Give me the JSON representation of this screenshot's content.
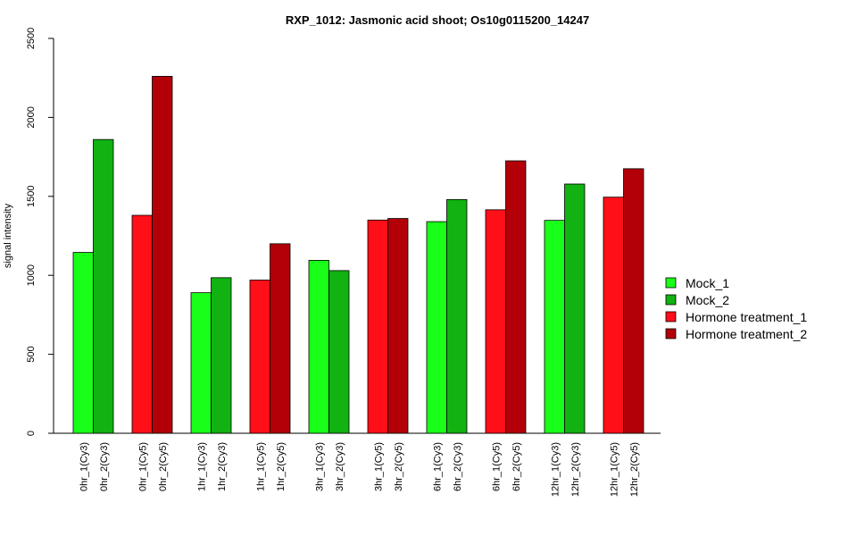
{
  "chart_data": {
    "type": "bar",
    "title": "RXP_1012: Jasmonic acid shoot; Os10g0115200_14247",
    "xlabel": "",
    "ylabel": "signal intensity",
    "ylim": [
      0,
      2500
    ],
    "yticks": [
      0,
      500,
      1000,
      1500,
      2000,
      2500
    ],
    "grid": false,
    "legend_position": "right",
    "legend": [
      {
        "name": "Mock_1",
        "color": "#19FF19"
      },
      {
        "name": "Mock_2",
        "color": "#11B211"
      },
      {
        "name": "Hormone treatment_1",
        "color": "#FF0F17"
      },
      {
        "name": "Hormone treatment_2",
        "color": "#B30008"
      }
    ],
    "bars": [
      {
        "label": "0hr_1(Cy3)",
        "value": 1145,
        "color": "#19FF19"
      },
      {
        "label": "0hr_2(Cy3)",
        "value": 1860,
        "color": "#11B211"
      },
      {
        "label": "0hr_1(Cy5)",
        "value": 1380,
        "color": "#FF0F17"
      },
      {
        "label": "0hr_2(Cy5)",
        "value": 2260,
        "color": "#B30008"
      },
      {
        "label": "1hr_1(Cy3)",
        "value": 890,
        "color": "#19FF19"
      },
      {
        "label": "1hr_2(Cy3)",
        "value": 985,
        "color": "#11B211"
      },
      {
        "label": "1hr_1(Cy5)",
        "value": 970,
        "color": "#FF0F17"
      },
      {
        "label": "1hr_2(Cy5)",
        "value": 1200,
        "color": "#B30008"
      },
      {
        "label": "3hr_1(Cy3)",
        "value": 1095,
        "color": "#19FF19"
      },
      {
        "label": "3hr_2(Cy3)",
        "value": 1030,
        "color": "#11B211"
      },
      {
        "label": "3hr_1(Cy5)",
        "value": 1350,
        "color": "#FF0F17"
      },
      {
        "label": "3hr_2(Cy5)",
        "value": 1360,
        "color": "#B30008"
      },
      {
        "label": "6hr_1(Cy3)",
        "value": 1340,
        "color": "#19FF19"
      },
      {
        "label": "6hr_2(Cy3)",
        "value": 1480,
        "color": "#11B211"
      },
      {
        "label": "6hr_1(Cy5)",
        "value": 1415,
        "color": "#FF0F17"
      },
      {
        "label": "6hr_2(Cy5)",
        "value": 1725,
        "color": "#B30008"
      },
      {
        "label": "12hr_1(Cy3)",
        "value": 1348,
        "color": "#19FF19"
      },
      {
        "label": "12hr_2(Cy3)",
        "value": 1578,
        "color": "#11B211"
      },
      {
        "label": "12hr_1(Cy5)",
        "value": 1495,
        "color": "#FF0F17"
      },
      {
        "label": "12hr_2(Cy5)",
        "value": 1675,
        "color": "#B30008"
      }
    ]
  }
}
